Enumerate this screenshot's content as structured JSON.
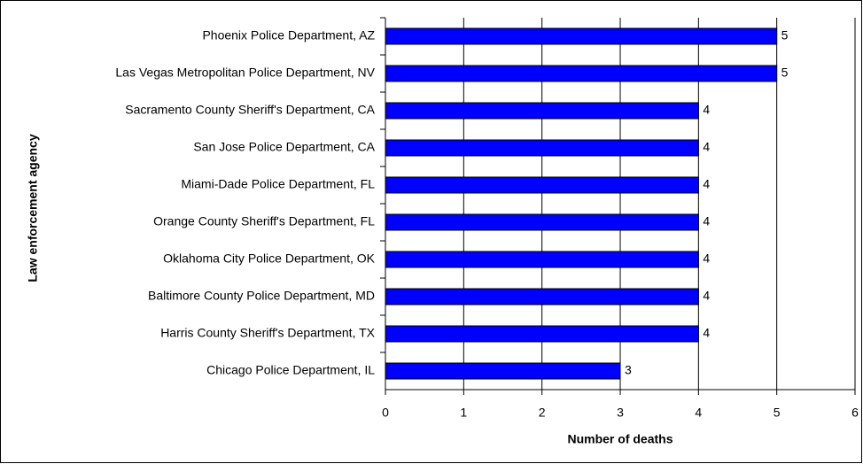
{
  "chart_data": {
    "type": "bar",
    "x_label": "Number of deaths",
    "y_label": "Law enforcement agency",
    "categories": [
      "Phoenix Police Department, AZ",
      "Las Vegas Metropolitan Police Department, NV",
      "Sacramento County Sheriff's Department, CA",
      "San Jose Police Department, CA",
      "Miami-Dade Police Department, FL",
      "Orange County Sheriff's Department, FL",
      "Oklahoma City Police Department, OK",
      "Baltimore County Police Department, MD",
      "Harris County Sheriff's Department, TX",
      "Chicago Police Department, IL"
    ],
    "values": [
      5,
      5,
      4,
      4,
      4,
      4,
      4,
      4,
      4,
      3
    ],
    "color": "#0000ff",
    "xlim": [
      0,
      6
    ],
    "xticks": [
      0,
      1,
      2,
      3,
      4,
      5,
      6
    ],
    "grid": true
  }
}
